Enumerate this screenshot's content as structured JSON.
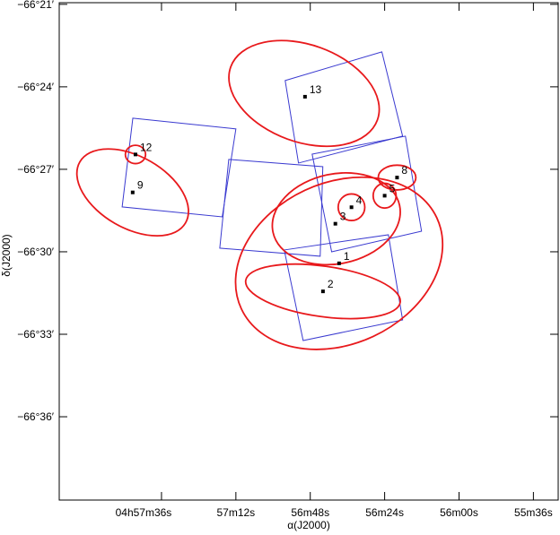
{
  "chart_data": {
    "type": "sky-map",
    "xlabel": "α(J2000)",
    "ylabel": "δ(J2000)",
    "xlim": [
      3489,
      3328
    ],
    "ylim": [
      -66.6505,
      -66.349
    ],
    "xticks": [
      {
        "value": 3456,
        "label": "04h57m36s"
      },
      {
        "value": 3432,
        "label": "57m12s"
      },
      {
        "value": 3408,
        "label": "56m48s"
      },
      {
        "value": 3384,
        "label": "56m24s"
      },
      {
        "value": 3360,
        "label": "56m00s"
      },
      {
        "value": 3336,
        "label": "55m36s"
      }
    ],
    "yticks": [
      {
        "value": -66.35,
        "label": "−66°21′"
      },
      {
        "value": -66.4,
        "label": "−66°24′"
      },
      {
        "value": -66.45,
        "label": "−66°27′"
      },
      {
        "value": -66.5,
        "label": "−66°30′"
      },
      {
        "value": -66.55,
        "label": "−66°33′"
      },
      {
        "value": -66.6,
        "label": "−66°36′"
      }
    ],
    "points": {
      "color": "#000000",
      "labels": [
        "1",
        "2",
        "3",
        "4",
        "5",
        "8",
        "9",
        "12",
        "13"
      ],
      "x": [
        3398.7,
        3403.9,
        3399.9,
        3394.7,
        3384.0,
        3380.0,
        3465.3,
        3464.4,
        3409.7
      ],
      "y": [
        -66.507,
        -66.524,
        -66.483,
        -66.473,
        -66.466,
        -66.455,
        -66.464,
        -66.441,
        -66.406
      ]
    },
    "ellipse_color": "#e8191c",
    "ellipses": [
      {
        "x": 3398.7,
        "y": -66.507,
        "a": 235,
        "b": 176,
        "angle": 25
      },
      {
        "x": 3403.9,
        "y": -66.524,
        "a": 170,
        "b": 55,
        "angle": -8
      },
      {
        "x": 3399.6,
        "y": -66.48,
        "a": 141,
        "b": 98,
        "angle": 12
      },
      {
        "x": 3394.7,
        "y": -66.473,
        "a": 29,
        "b": 29,
        "angle": 0
      },
      {
        "x": 3384.0,
        "y": -66.466,
        "a": 25,
        "b": 27,
        "angle": 0
      },
      {
        "x": 3380.0,
        "y": -66.455,
        "a": 41,
        "b": 27,
        "angle": 0
      },
      {
        "x": 3465.3,
        "y": -66.464,
        "a": 133,
        "b": 78,
        "angle": -30
      },
      {
        "x": 3464.4,
        "y": -66.441,
        "a": 22,
        "b": 20,
        "angle": 0
      },
      {
        "x": 3410.0,
        "y": -66.404,
        "a": 170,
        "b": 106,
        "angle": -20
      }
    ],
    "field_color": "#3a3ad0",
    "fields": [
      {
        "x": [
          3465.25,
          3432.0,
          3436.4,
          3468.7
        ],
        "y": [
          -66.419,
          -66.4255,
          -66.4788,
          -66.4728
        ]
      },
      {
        "x": [
          3434.3,
          3403.95,
          3404.8,
          3437.2
        ],
        "y": [
          -66.444,
          -66.4484,
          -66.5027,
          -66.4978
        ]
      },
      {
        "x": [
          3416.1,
          3384.9,
          3378.2,
          3411.8
        ],
        "y": [
          -66.3962,
          -66.3788,
          -66.4299,
          -66.4462
        ]
      },
      {
        "x": [
          3407.4,
          3377.3,
          3372.1,
          3401.1
        ],
        "y": [
          -66.4408,
          -66.4299,
          -66.4875,
          -66.5
        ]
      },
      {
        "x": [
          3416.4,
          3382.8,
          3378.2,
          3410.3
        ],
        "y": [
          -66.4989,
          -66.4897,
          -66.5413,
          -66.5538
        ]
      }
    ]
  }
}
